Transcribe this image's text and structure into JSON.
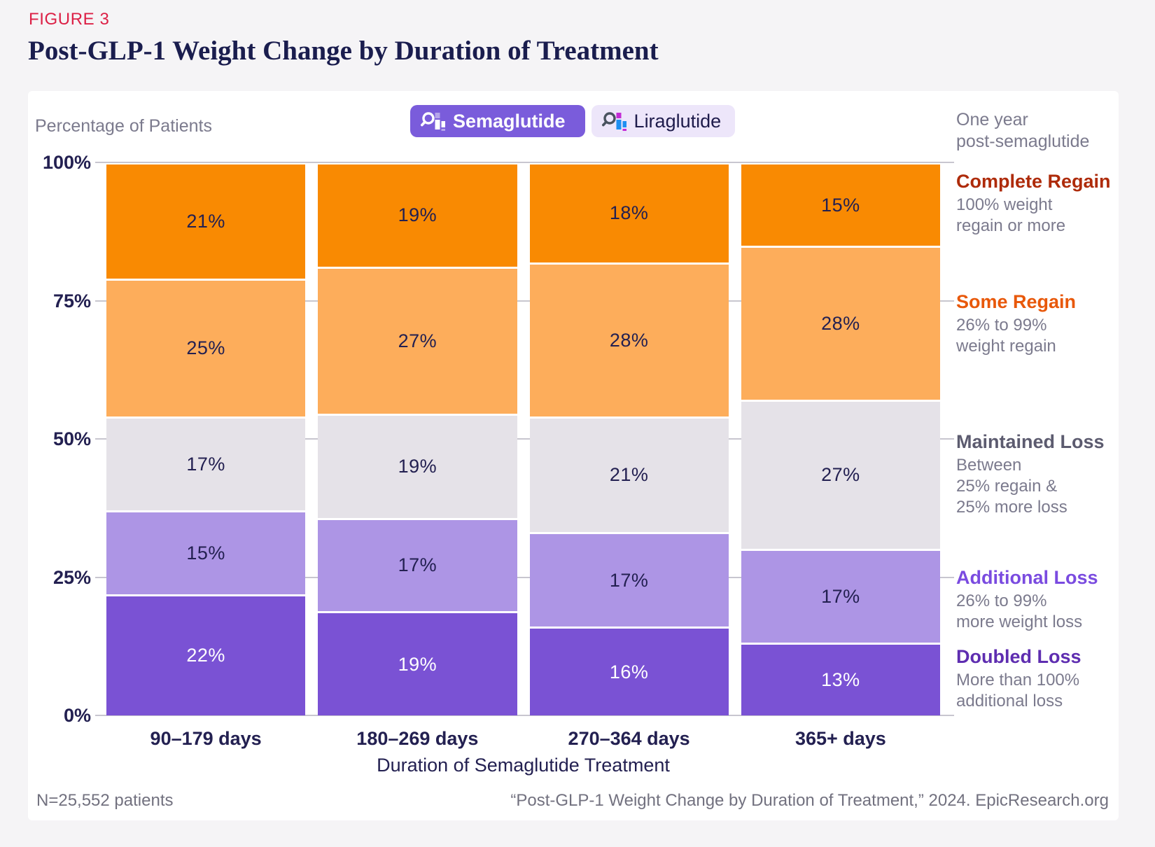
{
  "page": {
    "figure_label": "FIGURE 3",
    "title": "Post-GLP-1 Weight Change by Duration of Treatment"
  },
  "toolbar": {
    "buttons": [
      {
        "label": "Semaglutide",
        "active": true
      },
      {
        "label": "Liraglutide",
        "active": false
      }
    ]
  },
  "axis": {
    "y_title": "Percentage of Patients",
    "y_ticks": [
      "100%",
      "75%",
      "50%",
      "25%",
      "0%"
    ],
    "x_title": "Duration of Semaglutide Treatment"
  },
  "legend": {
    "intro": "One year\npost-semaglutide",
    "entries": [
      {
        "name": "Complete Regain",
        "desc": "100% weight\nregain or more",
        "color": "#AE2B0A"
      },
      {
        "name": "Some Regain",
        "desc": "26% to 99%\nweight regain",
        "color": "#E8580A"
      },
      {
        "name": "Maintained Loss",
        "desc": "Between\n25% regain &\n25% more loss",
        "color": "#5C5B6F"
      },
      {
        "name": "Additional Loss",
        "desc": "26% to 99%\nmore weight loss",
        "color": "#7A4BE0"
      },
      {
        "name": "Doubled Loss",
        "desc": "More than 100%\nadditional loss",
        "color": "#5E2DB0"
      }
    ]
  },
  "footer": {
    "left": "N=25,552 patients",
    "right": "“Post-GLP-1 Weight Change by Duration of Treatment,” 2024. EpicResearch.org"
  },
  "colors": {
    "accent_red": "#DC2046",
    "navy": "#232051",
    "semaglutide_button": "#7A5CDB",
    "liraglutide_button_bg": "#EDE6FA",
    "gridline": "#C8C6CF",
    "lira_icon_blue": "#1E8FF2",
    "lira_icon_magenta": "#C32BD6"
  },
  "chart_data": {
    "type": "bar",
    "subtype": "stacked_percentage",
    "title": "Post-GLP-1 Weight Change by Duration of Treatment",
    "categories": [
      "90–179 days",
      "180–269 days",
      "270–364 days",
      "365+ days"
    ],
    "unit": "%",
    "series": [
      {
        "name": "Doubled Loss",
        "color": "#7A52D4",
        "label_text_color": "#FFFFFF",
        "values": [
          22,
          19,
          16,
          13
        ]
      },
      {
        "name": "Additional Loss",
        "color": "#AD95E5",
        "label_text_color": "#232051",
        "values": [
          15,
          17,
          17,
          17
        ]
      },
      {
        "name": "Maintained Loss",
        "color": "#E5E2E8",
        "label_text_color": "#232051",
        "values": [
          17,
          19,
          21,
          27
        ]
      },
      {
        "name": "Some Regain",
        "color": "#FDAD5B",
        "label_text_color": "#232051",
        "values": [
          25,
          27,
          28,
          28
        ]
      },
      {
        "name": "Complete Regain",
        "color": "#F98A02",
        "label_text_color": "#232051",
        "values": [
          21,
          19,
          18,
          15
        ]
      }
    ],
    "stack_order_bottom_to_top": [
      "Doubled Loss",
      "Additional Loss",
      "Maintained Loss",
      "Some Regain",
      "Complete Regain"
    ],
    "xlabel": "Duration of Semaglutide Treatment",
    "ylabel": "Percentage of Patients",
    "ylim": [
      0,
      100
    ],
    "y_tick_labels": [
      "0%",
      "25%",
      "50%",
      "75%",
      "100%"
    ],
    "grid": true,
    "legend_position": "right"
  }
}
